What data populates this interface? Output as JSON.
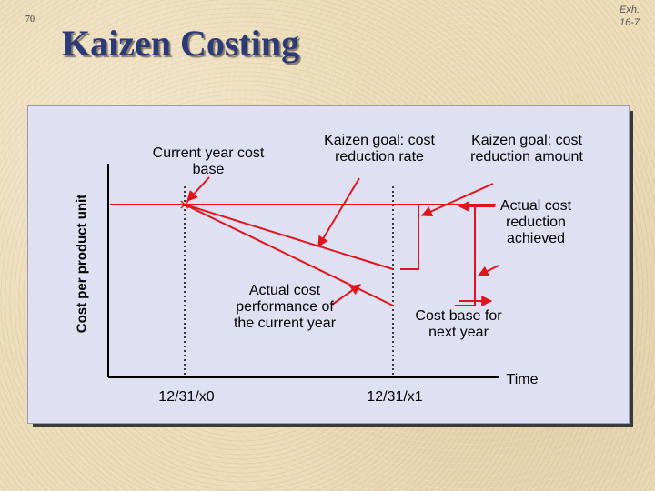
{
  "slide": {
    "number": "70",
    "exhibit": "Exh. 16-7",
    "title": "Kaizen Costing"
  },
  "diagram": {
    "ylabel": "Cost per product unit",
    "xlabel": "Time",
    "x_ticks": [
      "12/31/x0",
      "12/31/x1"
    ],
    "labels": {
      "current_base": "Current year cost base",
      "goal_rate": "Kaizen goal: cost reduction rate",
      "goal_amount": "Kaizen goal: cost reduction amount",
      "actual_achieved": "Actual cost reduction achieved",
      "actual_performance": "Actual cost performance of the current year",
      "next_base": "Cost base for next year"
    },
    "colors": {
      "line": "#e0141c",
      "axis": "#000000",
      "title": "#2d3a78"
    }
  }
}
